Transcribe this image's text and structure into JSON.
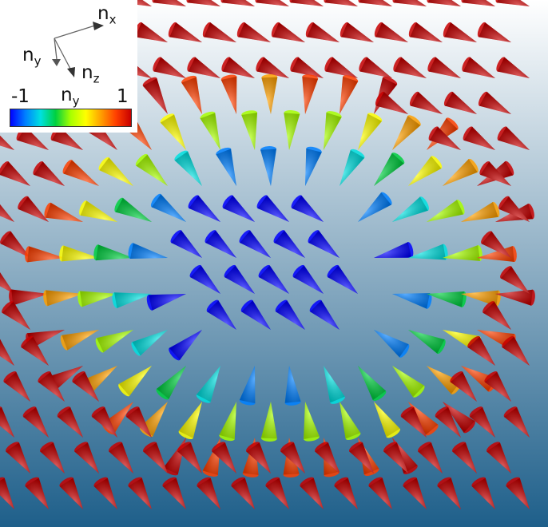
{
  "axes": {
    "x": {
      "symbol": "n",
      "sub": "x"
    },
    "y": {
      "symbol": "n",
      "sub": "y"
    },
    "z": {
      "symbol": "n",
      "sub": "z"
    }
  },
  "colorbar": {
    "min_label": "-1",
    "max_label": "1",
    "title_symbol": "n",
    "title_sub": "y",
    "stops": [
      "#0000ff",
      "#0080ff",
      "#00e0e0",
      "#00d040",
      "#a8ff00",
      "#ffff00",
      "#ffa000",
      "#ff4000",
      "#c80000"
    ]
  },
  "colors": {
    "bg_top": "#ffffff",
    "bg_bottom": "#1e5f8a",
    "outer_arrow": "#c80a0a",
    "core_arrow": "#0a32d2"
  }
}
